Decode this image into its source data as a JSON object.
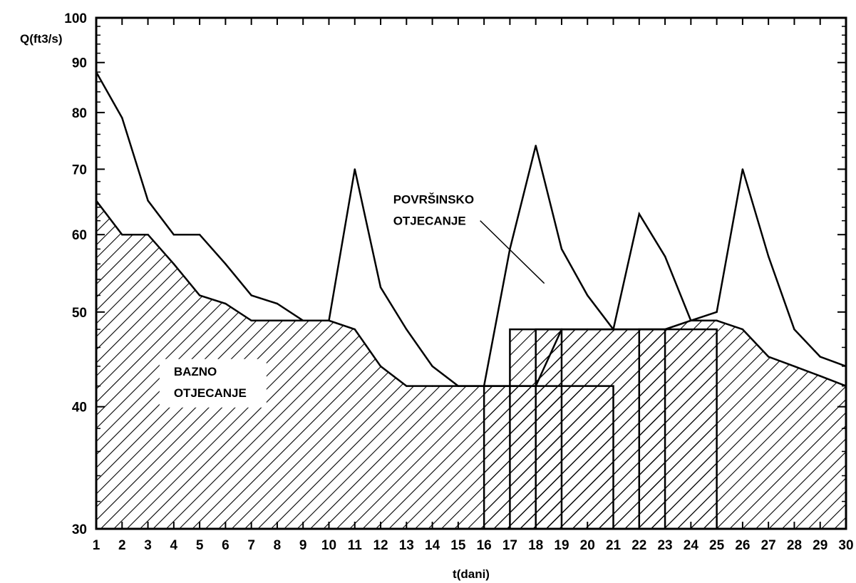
{
  "chart_data": {
    "type": "area",
    "xlabel": "t(dani)",
    "ylabel": "Q(ft3/s)",
    "y_scale": "log",
    "xlim": [
      1,
      30
    ],
    "ylim": [
      30,
      100
    ],
    "x_ticks": [
      1,
      2,
      3,
      4,
      5,
      6,
      7,
      8,
      9,
      10,
      11,
      12,
      13,
      14,
      15,
      16,
      17,
      18,
      19,
      20,
      21,
      22,
      23,
      24,
      25,
      26,
      27,
      28,
      29,
      30
    ],
    "y_ticks": [
      30,
      40,
      50,
      60,
      70,
      80,
      90,
      100
    ],
    "series": [
      {
        "name": "POVRŠINSKO OTJECANJE",
        "x": [
          1,
          2,
          3,
          4,
          5,
          6,
          7,
          8,
          9,
          10,
          11,
          12,
          13,
          14,
          15,
          16,
          17,
          18,
          19,
          20,
          21,
          22,
          23,
          24,
          25,
          26,
          27,
          28,
          29,
          30
        ],
        "values": [
          88,
          79,
          65,
          60,
          60,
          56,
          52,
          51,
          49,
          49,
          70,
          53,
          48,
          44,
          42,
          42,
          58,
          74,
          58,
          52,
          48,
          63,
          57,
          49,
          50,
          70,
          57,
          48,
          45,
          44
        ]
      },
      {
        "name": "BAZNO OTJECANJE",
        "x": [
          1,
          2,
          3,
          4,
          5,
          6,
          7,
          8,
          9,
          10,
          11,
          12,
          13,
          14,
          15,
          16,
          17,
          18,
          19,
          20,
          21,
          22,
          23,
          24,
          25,
          26,
          27,
          28,
          29,
          30
        ],
        "values": [
          65,
          60,
          60,
          56,
          52,
          51,
          49,
          49,
          49,
          49,
          48,
          44,
          42,
          42,
          42,
          42,
          42,
          42,
          48,
          48,
          48,
          48,
          48,
          49,
          49,
          48,
          45,
          44,
          43,
          42
        ]
      }
    ],
    "rectangles": [
      {
        "x0": 16,
        "x1": 21,
        "y_top": 42
      },
      {
        "x0": 17,
        "x1": 25,
        "y_top": 48
      },
      {
        "x0": 18,
        "x1": 19,
        "y_top": 48
      },
      {
        "x0": 22,
        "x1": 23,
        "y_top": 48
      }
    ],
    "annotations": [
      {
        "lines": [
          "POVRŠINSKO",
          "OTJECANJE"
        ],
        "x": 18.0,
        "y": 55.5
      },
      {
        "lines": [
          "BAZNO",
          "OTJECANJE"
        ],
        "x": 4.0,
        "y": 41.5
      }
    ],
    "grid": false
  }
}
